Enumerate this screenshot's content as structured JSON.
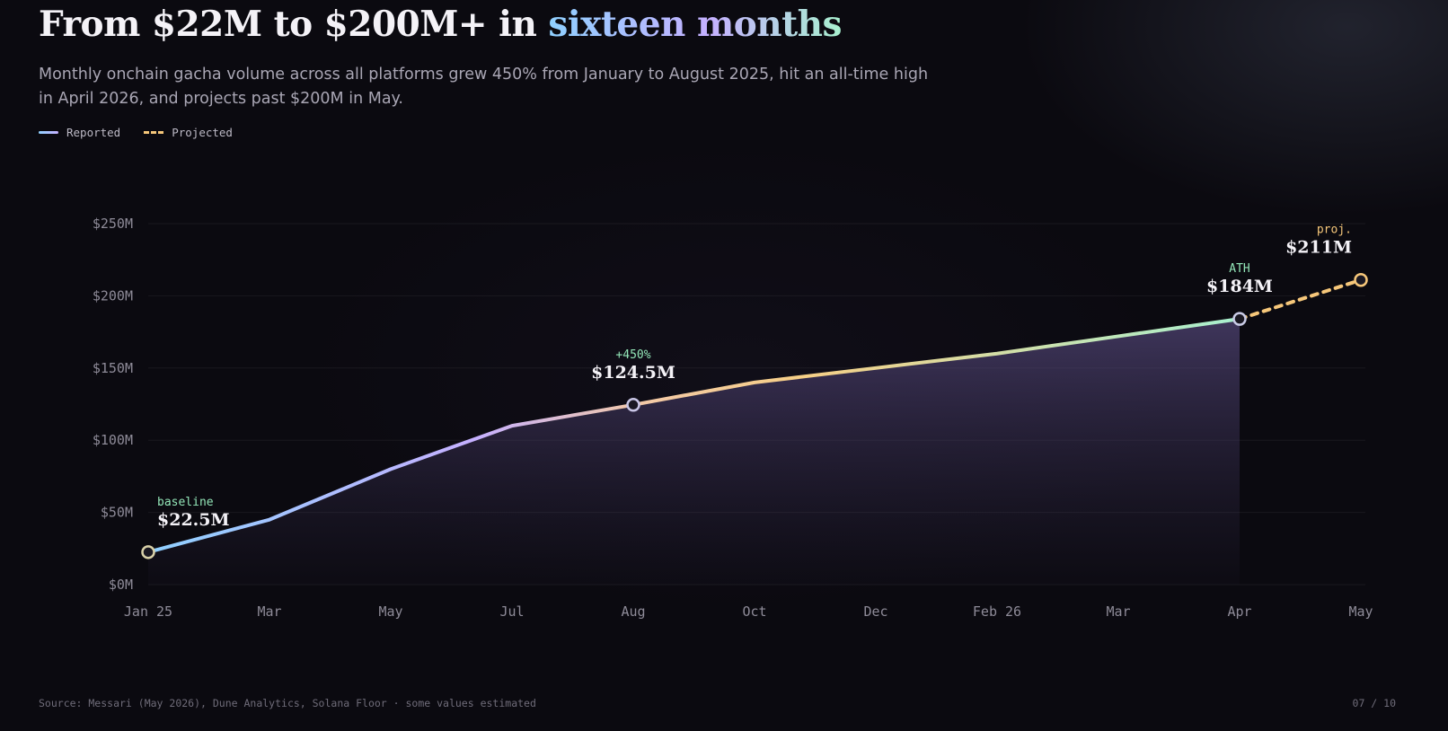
{
  "header": {
    "title_main": "From $22M to $200M+ in ",
    "title_highlight": "sixteen months",
    "subtitle": "Monthly onchain gacha volume across all platforms grew 450% from January to August 2025, hit an all-time high in April 2026, and projects past $200M in May."
  },
  "legend": {
    "reported": "Reported",
    "projected": "Projected"
  },
  "chart_data": {
    "type": "line",
    "title": "",
    "xlabel": "",
    "ylabel": "",
    "x_ticks": [
      "Jan 25",
      "Mar",
      "May",
      "Jul",
      "Aug",
      "Oct",
      "Dec",
      "Feb 26",
      "Mar",
      "Apr",
      "May"
    ],
    "y_ticks": [
      "$0M",
      "$50M",
      "$100M",
      "$150M",
      "$200M",
      "$250M"
    ],
    "ylim": [
      0,
      250
    ],
    "grid": true,
    "legend_position": "top-left",
    "series": [
      {
        "name": "Reported",
        "style": "solid",
        "points": [
          {
            "x": "2025-01",
            "y": 22.5
          },
          {
            "x": "2025-03",
            "y": 45
          },
          {
            "x": "2025-05",
            "y": 80
          },
          {
            "x": "2025-07",
            "y": 110
          },
          {
            "x": "2025-08",
            "y": 124.5
          },
          {
            "x": "2025-10",
            "y": 140
          },
          {
            "x": "2025-12",
            "y": 150
          },
          {
            "x": "2026-02",
            "y": 160
          },
          {
            "x": "2026-03",
            "y": 172
          },
          {
            "x": "2026-04",
            "y": 184
          }
        ]
      },
      {
        "name": "Projected",
        "style": "dashed",
        "points": [
          {
            "x": "2026-04",
            "y": 184
          },
          {
            "x": "2026-05",
            "y": 211
          }
        ]
      }
    ],
    "annotations": [
      {
        "x": "2025-01",
        "tag": "baseline",
        "value": "$22.5M"
      },
      {
        "x": "2025-08",
        "tag": "+450%",
        "value": "$124.5M"
      },
      {
        "x": "2026-04",
        "tag": "ATH",
        "value": "$184M"
      },
      {
        "x": "2026-05",
        "tag": "proj.",
        "value": "$211M"
      }
    ],
    "colors": {
      "gradient": [
        "#8fd0ff",
        "#c5b0ff",
        "#f3c9a8",
        "#f6cf86",
        "#a8f0cf"
      ],
      "projected": "#f6c77a",
      "tag_green": "#93e6b8",
      "tag_orange": "#f6c77a"
    }
  },
  "footer": {
    "source": "Source: Messari (May 2026), Dune Analytics, Solana Floor · some values estimated",
    "page": "07 / 10"
  }
}
